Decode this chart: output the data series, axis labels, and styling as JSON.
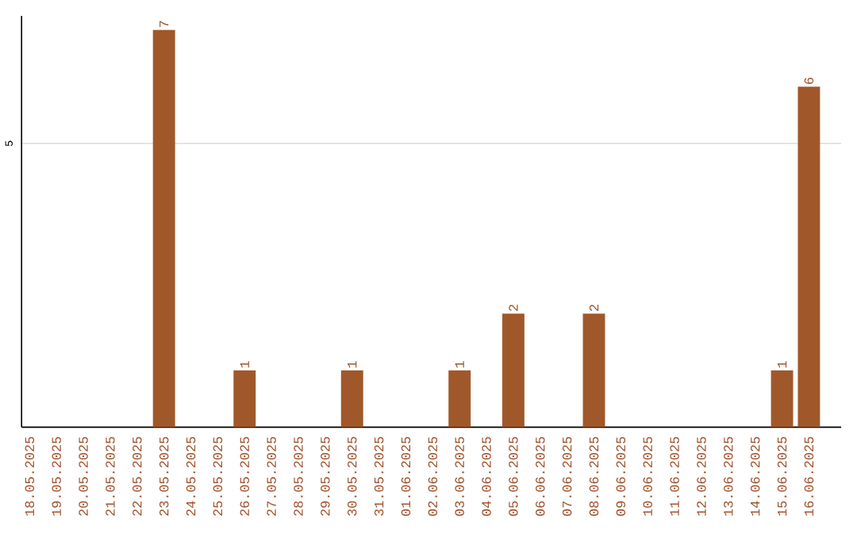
{
  "chart_data": {
    "type": "bar",
    "categories": [
      "18.05.2025",
      "19.05.2025",
      "20.05.2025",
      "21.05.2025",
      "22.05.2025",
      "23.05.2025",
      "24.05.2025",
      "25.05.2025",
      "26.05.2025",
      "27.05.2025",
      "28.05.2025",
      "29.05.2025",
      "30.05.2025",
      "31.05.2025",
      "01.06.2025",
      "02.06.2025",
      "03.06.2025",
      "04.06.2025",
      "05.06.2025",
      "06.06.2025",
      "07.06.2025",
      "08.06.2025",
      "09.06.2025",
      "10.06.2025",
      "11.06.2025",
      "12.06.2025",
      "13.06.2025",
      "14.06.2025",
      "15.06.2025",
      "16.06.2025"
    ],
    "values": [
      0,
      0,
      0,
      0,
      0,
      7,
      0,
      0,
      1,
      0,
      0,
      0,
      1,
      0,
      0,
      0,
      1,
      0,
      2,
      0,
      0,
      2,
      0,
      0,
      0,
      0,
      0,
      0,
      1,
      6
    ],
    "value_labels": [
      null,
      null,
      null,
      null,
      null,
      "7",
      null,
      null,
      "1",
      null,
      null,
      null,
      "1",
      null,
      null,
      null,
      "1",
      null,
      "2",
      null,
      null,
      "2",
      null,
      null,
      null,
      null,
      null,
      null,
      "1",
      "6"
    ],
    "color": "#a0582a",
    "ylim": [
      0,
      7.25
    ],
    "yticks": [
      5
    ],
    "grid": "y"
  }
}
